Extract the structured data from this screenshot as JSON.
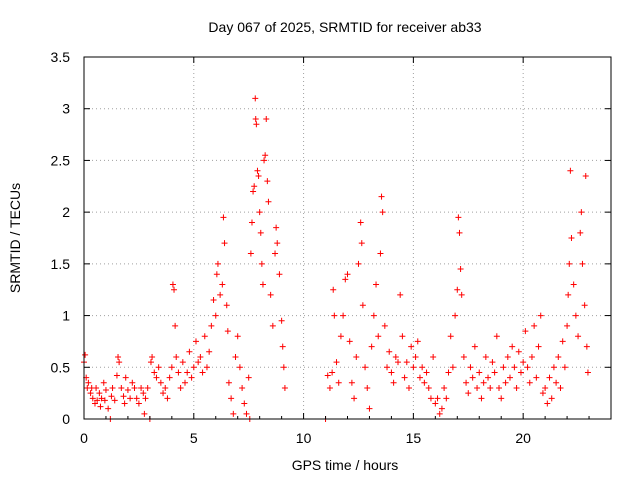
{
  "chart_data": {
    "type": "scatter",
    "title": "Day 067 of 2025, SRMTID for receiver ab33",
    "xlabel": "GPS time / hours",
    "ylabel": "SRMTID / TECUs",
    "xlim": [
      0,
      24
    ],
    "ylim": [
      0,
      3.5
    ],
    "x_ticks": [
      0,
      5,
      10,
      15,
      20
    ],
    "x_tick_labels": [
      "0",
      "5",
      "10",
      "15",
      "20"
    ],
    "y_ticks": [
      0,
      0.5,
      1,
      1.5,
      2,
      2.5,
      3,
      3.5
    ],
    "y_tick_labels": [
      "0",
      "0.5",
      "1",
      "1.5",
      "2",
      "2.5",
      "3",
      "3.5"
    ],
    "grid": true,
    "marker": "+",
    "series": [
      {
        "name": "SRMTID",
        "color": "#ff0000",
        "points": [
          [
            0.0,
            0.55
          ],
          [
            0.05,
            0.62
          ],
          [
            0.1,
            0.4
          ],
          [
            0.15,
            0.3
          ],
          [
            0.2,
            0.35
          ],
          [
            0.3,
            0.25
          ],
          [
            0.35,
            0.3
          ],
          [
            0.4,
            0.2
          ],
          [
            0.5,
            0.15
          ],
          [
            0.55,
            0.3
          ],
          [
            0.6,
            0.18
          ],
          [
            0.7,
            0.25
          ],
          [
            0.75,
            0.12
          ],
          [
            0.8,
            0.2
          ],
          [
            0.9,
            0.35
          ],
          [
            0.95,
            0.18
          ],
          [
            1.0,
            0.28
          ],
          [
            1.1,
            0.1
          ],
          [
            1.2,
            0.0
          ],
          [
            1.25,
            0.22
          ],
          [
            1.3,
            0.3
          ],
          [
            1.4,
            0.18
          ],
          [
            1.5,
            0.42
          ],
          [
            1.55,
            0.6
          ],
          [
            1.6,
            0.55
          ],
          [
            1.7,
            0.3
          ],
          [
            1.8,
            0.22
          ],
          [
            1.85,
            0.15
          ],
          [
            1.9,
            0.4
          ],
          [
            2.0,
            0.28
          ],
          [
            2.1,
            0.2
          ],
          [
            2.2,
            0.35
          ],
          [
            2.3,
            0.3
          ],
          [
            2.4,
            0.2
          ],
          [
            2.5,
            0.15
          ],
          [
            2.6,
            0.3
          ],
          [
            2.7,
            0.25
          ],
          [
            2.75,
            0.05
          ],
          [
            2.8,
            0.2
          ],
          [
            2.9,
            0.3
          ],
          [
            3.0,
            0.0
          ],
          [
            3.05,
            0.55
          ],
          [
            3.1,
            0.6
          ],
          [
            3.2,
            0.45
          ],
          [
            3.3,
            0.4
          ],
          [
            3.4,
            0.5
          ],
          [
            3.5,
            0.35
          ],
          [
            3.6,
            0.25
          ],
          [
            3.7,
            0.3
          ],
          [
            3.8,
            0.2
          ],
          [
            3.9,
            0.4
          ],
          [
            4.0,
            0.5
          ],
          [
            4.05,
            1.3
          ],
          [
            4.1,
            1.25
          ],
          [
            4.15,
            0.9
          ],
          [
            4.2,
            0.6
          ],
          [
            4.3,
            0.45
          ],
          [
            4.4,
            0.3
          ],
          [
            4.5,
            0.55
          ],
          [
            4.6,
            0.35
          ],
          [
            4.7,
            0.45
          ],
          [
            4.8,
            0.65
          ],
          [
            4.9,
            0.4
          ],
          [
            5.0,
            0.5
          ],
          [
            5.1,
            0.75
          ],
          [
            5.2,
            0.55
          ],
          [
            5.3,
            0.6
          ],
          [
            5.4,
            0.45
          ],
          [
            5.5,
            0.8
          ],
          [
            5.6,
            0.5
          ],
          [
            5.7,
            0.65
          ],
          [
            5.8,
            0.9
          ],
          [
            5.9,
            1.15
          ],
          [
            6.0,
            1.0
          ],
          [
            6.05,
            1.4
          ],
          [
            6.1,
            1.5
          ],
          [
            6.2,
            1.2
          ],
          [
            6.3,
            1.3
          ],
          [
            6.35,
            1.95
          ],
          [
            6.4,
            1.7
          ],
          [
            6.5,
            1.1
          ],
          [
            6.55,
            0.85
          ],
          [
            6.6,
            0.35
          ],
          [
            6.7,
            0.2
          ],
          [
            6.8,
            0.05
          ],
          [
            6.9,
            0.6
          ],
          [
            7.0,
            0.8
          ],
          [
            7.1,
            0.5
          ],
          [
            7.2,
            0.3
          ],
          [
            7.3,
            0.15
          ],
          [
            7.4,
            0.05
          ],
          [
            7.5,
            0.4
          ],
          [
            7.55,
            0.0
          ],
          [
            7.6,
            1.6
          ],
          [
            7.65,
            1.9
          ],
          [
            7.7,
            2.2
          ],
          [
            7.75,
            2.25
          ],
          [
            7.8,
            3.1
          ],
          [
            7.82,
            2.9
          ],
          [
            7.85,
            2.85
          ],
          [
            7.9,
            2.4
          ],
          [
            7.95,
            2.35
          ],
          [
            8.0,
            2.0
          ],
          [
            8.05,
            1.8
          ],
          [
            8.1,
            1.5
          ],
          [
            8.15,
            1.3
          ],
          [
            8.2,
            2.5
          ],
          [
            8.25,
            2.55
          ],
          [
            8.3,
            2.9
          ],
          [
            8.35,
            2.3
          ],
          [
            8.4,
            2.1
          ],
          [
            8.5,
            1.2
          ],
          [
            8.6,
            0.9
          ],
          [
            8.7,
            1.6
          ],
          [
            8.75,
            1.85
          ],
          [
            8.8,
            1.7
          ],
          [
            8.9,
            1.4
          ],
          [
            9.0,
            0.95
          ],
          [
            9.05,
            0.7
          ],
          [
            9.1,
            0.5
          ],
          [
            9.15,
            0.3
          ],
          [
            11.0,
            0.0
          ],
          [
            11.1,
            0.42
          ],
          [
            11.2,
            0.3
          ],
          [
            11.3,
            0.45
          ],
          [
            11.35,
            1.25
          ],
          [
            11.4,
            1.0
          ],
          [
            11.5,
            0.55
          ],
          [
            11.6,
            0.35
          ],
          [
            11.7,
            0.8
          ],
          [
            11.8,
            1.0
          ],
          [
            11.9,
            1.35
          ],
          [
            12.0,
            1.4
          ],
          [
            12.1,
            0.75
          ],
          [
            12.2,
            0.35
          ],
          [
            12.3,
            0.2
          ],
          [
            12.4,
            0.6
          ],
          [
            12.5,
            1.5
          ],
          [
            12.6,
            1.9
          ],
          [
            12.65,
            1.7
          ],
          [
            12.7,
            1.1
          ],
          [
            12.8,
            0.5
          ],
          [
            12.9,
            0.3
          ],
          [
            13.0,
            0.1
          ],
          [
            13.1,
            0.7
          ],
          [
            13.2,
            1.0
          ],
          [
            13.3,
            1.3
          ],
          [
            13.4,
            0.8
          ],
          [
            13.5,
            1.6
          ],
          [
            13.55,
            2.15
          ],
          [
            13.6,
            2.0
          ],
          [
            13.7,
            0.9
          ],
          [
            13.8,
            0.5
          ],
          [
            13.9,
            0.65
          ],
          [
            14.0,
            0.45
          ],
          [
            14.1,
            0.35
          ],
          [
            14.2,
            0.6
          ],
          [
            14.3,
            0.55
          ],
          [
            14.4,
            1.2
          ],
          [
            14.5,
            0.8
          ],
          [
            14.6,
            0.4
          ],
          [
            14.7,
            0.55
          ],
          [
            14.8,
            0.3
          ],
          [
            14.9,
            0.7
          ],
          [
            15.0,
            0.5
          ],
          [
            15.1,
            0.6
          ],
          [
            15.2,
            0.75
          ],
          [
            15.3,
            0.4
          ],
          [
            15.4,
            0.5
          ],
          [
            15.5,
            0.35
          ],
          [
            15.6,
            0.45
          ],
          [
            15.7,
            0.3
          ],
          [
            15.8,
            0.2
          ],
          [
            15.9,
            0.6
          ],
          [
            16.0,
            0.15
          ],
          [
            16.1,
            0.2
          ],
          [
            16.2,
            0.05
          ],
          [
            16.3,
            0.1
          ],
          [
            16.4,
            0.3
          ],
          [
            16.5,
            0.2
          ],
          [
            16.6,
            0.45
          ],
          [
            16.7,
            0.8
          ],
          [
            16.8,
            0.5
          ],
          [
            16.9,
            1.0
          ],
          [
            17.0,
            1.25
          ],
          [
            17.05,
            1.95
          ],
          [
            17.1,
            1.8
          ],
          [
            17.15,
            1.45
          ],
          [
            17.2,
            1.2
          ],
          [
            17.3,
            0.6
          ],
          [
            17.4,
            0.35
          ],
          [
            17.5,
            0.25
          ],
          [
            17.6,
            0.5
          ],
          [
            17.7,
            0.4
          ],
          [
            17.8,
            0.7
          ],
          [
            17.9,
            0.3
          ],
          [
            18.0,
            0.45
          ],
          [
            18.1,
            0.2
          ],
          [
            18.2,
            0.35
          ],
          [
            18.3,
            0.6
          ],
          [
            18.4,
            0.4
          ],
          [
            18.5,
            0.3
          ],
          [
            18.6,
            0.55
          ],
          [
            18.7,
            0.45
          ],
          [
            18.8,
            0.8
          ],
          [
            18.9,
            0.3
          ],
          [
            19.0,
            0.2
          ],
          [
            19.1,
            0.5
          ],
          [
            19.2,
            0.35
          ],
          [
            19.3,
            0.6
          ],
          [
            19.4,
            0.4
          ],
          [
            19.5,
            0.7
          ],
          [
            19.6,
            0.5
          ],
          [
            19.7,
            0.3
          ],
          [
            19.8,
            0.65
          ],
          [
            19.9,
            0.45
          ],
          [
            20.0,
            0.55
          ],
          [
            20.1,
            0.85
          ],
          [
            20.2,
            0.5
          ],
          [
            20.3,
            0.35
          ],
          [
            20.4,
            0.6
          ],
          [
            20.5,
            0.9
          ],
          [
            20.6,
            0.4
          ],
          [
            20.7,
            0.7
          ],
          [
            20.8,
            1.0
          ],
          [
            20.9,
            0.25
          ],
          [
            21.0,
            0.3
          ],
          [
            21.1,
            0.15
          ],
          [
            21.2,
            0.4
          ],
          [
            21.3,
            0.2
          ],
          [
            21.4,
            0.5
          ],
          [
            21.5,
            0.35
          ],
          [
            21.6,
            0.6
          ],
          [
            21.7,
            0.3
          ],
          [
            21.8,
            0.75
          ],
          [
            21.9,
            0.5
          ],
          [
            22.0,
            0.9
          ],
          [
            22.05,
            1.2
          ],
          [
            22.1,
            1.5
          ],
          [
            22.15,
            2.4
          ],
          [
            22.2,
            1.75
          ],
          [
            22.3,
            1.3
          ],
          [
            22.4,
            1.0
          ],
          [
            22.5,
            0.8
          ],
          [
            22.6,
            1.8
          ],
          [
            22.65,
            2.0
          ],
          [
            22.7,
            1.5
          ],
          [
            22.8,
            1.1
          ],
          [
            22.85,
            2.35
          ],
          [
            22.9,
            0.7
          ],
          [
            22.95,
            0.45
          ]
        ]
      }
    ]
  }
}
